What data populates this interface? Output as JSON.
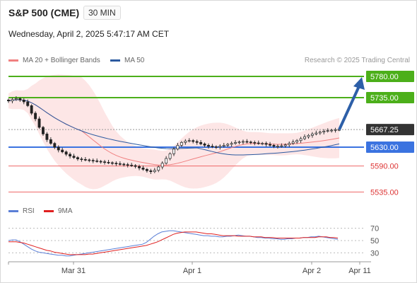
{
  "header": {
    "instrument": "S&P 500 (CME)",
    "interval": "30 MIN",
    "datetime": "Wednesday, April 2, 2025 5:47:17 AM CET"
  },
  "legend": {
    "ma20": {
      "label": "MA 20 + Bollinger Bands",
      "color": "#f08080"
    },
    "ma50": {
      "label": "MA 50",
      "color": "#2c5aa0"
    },
    "rsi": {
      "label": "RSI",
      "color": "#5b7fd6"
    },
    "rsi_ma": {
      "label": "9MA",
      "color": "#e02020"
    }
  },
  "credit": "Research © 2025 Trading Central",
  "chart_data": [
    {
      "type": "candlestick",
      "ylim": [
        5525,
        5795
      ],
      "levels": [
        {
          "value": 5780.0,
          "label": "5780.00",
          "style": "resistance",
          "color": "#4caf1a"
        },
        {
          "value": 5735.0,
          "label": "5735.00",
          "style": "resistance",
          "color": "#4caf1a"
        },
        {
          "value": 5667.25,
          "label": "5667.25",
          "style": "last",
          "color": "#333333"
        },
        {
          "value": 5630.0,
          "label": "5630.00",
          "style": "pivot",
          "color": "#3b73e0"
        },
        {
          "value": 5590.0,
          "label": "5590.00",
          "style": "support",
          "color": "#ee6666"
        },
        {
          "value": 5535.0,
          "label": "5535.00",
          "style": "support",
          "color": "#ee6666"
        }
      ],
      "close": [
        5728,
        5731,
        5733,
        5730,
        5726,
        5718,
        5702,
        5690,
        5672,
        5658,
        5646,
        5638,
        5630,
        5624,
        5620,
        5615,
        5611,
        5608,
        5605,
        5604,
        5603,
        5602,
        5601,
        5600,
        5599,
        5598,
        5597,
        5596,
        5595,
        5594,
        5593,
        5592,
        5591,
        5589,
        5586,
        5583,
        5580,
        5578,
        5581,
        5588,
        5596,
        5606,
        5616,
        5626,
        5634,
        5640,
        5643,
        5644,
        5642,
        5640,
        5637,
        5634,
        5632,
        5631,
        5630,
        5632,
        5634,
        5636,
        5638,
        5640,
        5641,
        5642,
        5641,
        5640,
        5639,
        5638,
        5638,
        5636,
        5634,
        5632,
        5632,
        5633,
        5635,
        5638,
        5641,
        5644,
        5648,
        5652,
        5655,
        5658,
        5660,
        5662,
        5664,
        5665,
        5666,
        5667,
        5667.25
      ],
      "forecast": {
        "from": 5667.25,
        "to": 5780.0
      },
      "xticks": [
        "Mar 31",
        "Apr 1",
        "Apr 2",
        "Apr 11"
      ]
    },
    {
      "type": "line",
      "name": "RSI",
      "ylim": [
        20,
        80
      ],
      "yticks": [
        30,
        50,
        70
      ],
      "rsi": [
        50,
        51,
        51,
        48,
        44,
        40,
        36,
        33,
        31,
        30,
        29,
        28,
        27,
        26,
        26,
        25,
        25,
        26,
        27,
        28,
        29,
        30,
        31,
        32,
        33,
        34,
        35,
        36,
        37,
        38,
        39,
        40,
        41,
        42,
        43,
        44,
        47,
        52,
        57,
        61,
        64,
        65,
        66,
        66,
        65,
        64,
        63,
        62,
        61,
        60,
        59,
        58,
        58,
        57,
        57,
        56,
        56,
        57,
        57,
        58,
        59,
        58,
        57,
        57,
        56,
        55,
        55,
        54,
        54,
        53,
        53,
        52,
        52,
        53,
        53,
        54,
        54,
        55,
        55,
        56,
        56,
        57,
        56,
        55,
        54,
        53,
        52
      ],
      "ma9": [
        48,
        48,
        48,
        47,
        46,
        44,
        42,
        40,
        38,
        36,
        34,
        33,
        31,
        30,
        29,
        28,
        27,
        27,
        27,
        27,
        27,
        28,
        28,
        29,
        30,
        31,
        32,
        33,
        34,
        35,
        36,
        37,
        38,
        39,
        40,
        41,
        42,
        44,
        46,
        48,
        51,
        54,
        57,
        60,
        62,
        63,
        64,
        64,
        64,
        64,
        63,
        62,
        61,
        61,
        60,
        59,
        58,
        58,
        58,
        58,
        57,
        57,
        57,
        57,
        56,
        56,
        56,
        55,
        55,
        55,
        54,
        54,
        54,
        54,
        54,
        54,
        54,
        55,
        55,
        55,
        55,
        56,
        56,
        56,
        55,
        55,
        54
      ]
    }
  ]
}
